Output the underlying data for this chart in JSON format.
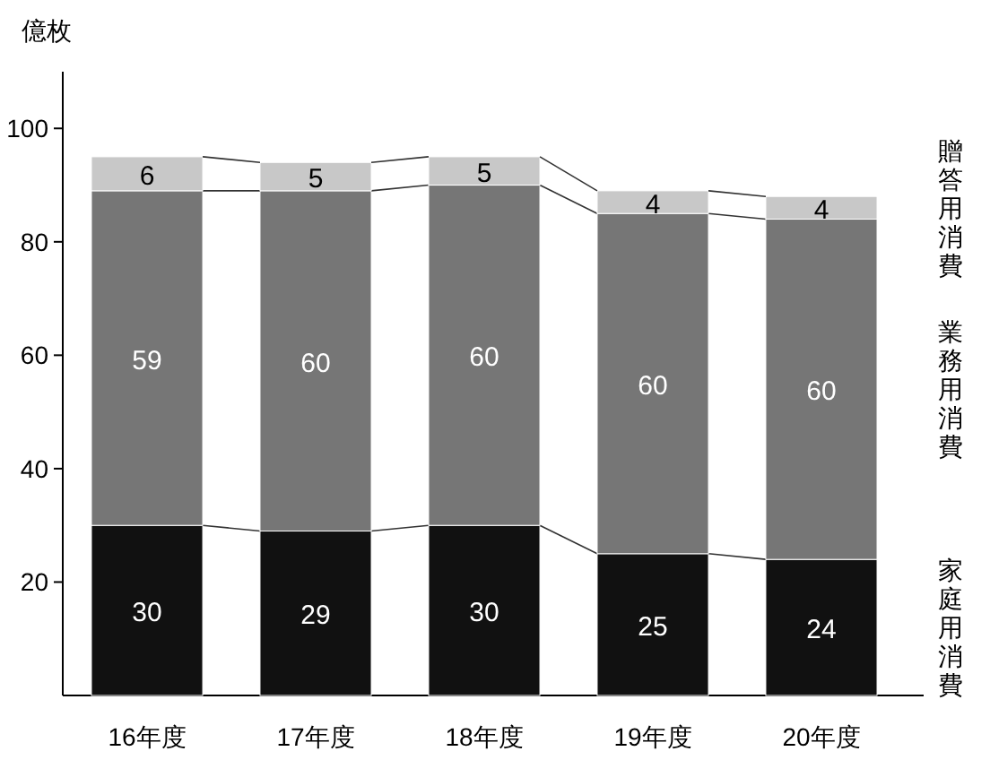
{
  "chart_data": {
    "type": "bar",
    "stacked": true,
    "ylabel": "億枚",
    "categories": [
      "16年度",
      "17年度",
      "18年度",
      "19年度",
      "20年度"
    ],
    "series": [
      {
        "name": "家庭用消費",
        "color": "#111111",
        "values": [
          30,
          29,
          30,
          25,
          24
        ]
      },
      {
        "name": "業務用消費",
        "color": "#767676",
        "values": [
          59,
          60,
          60,
          60,
          60
        ]
      },
      {
        "name": "贈答用消費",
        "color": "#c8c8c8",
        "values": [
          6,
          5,
          5,
          4,
          4
        ]
      }
    ],
    "ylim": [
      0,
      110
    ],
    "yticks": [
      20,
      40,
      60,
      80,
      100
    ],
    "data_labels": true,
    "grid": false
  }
}
